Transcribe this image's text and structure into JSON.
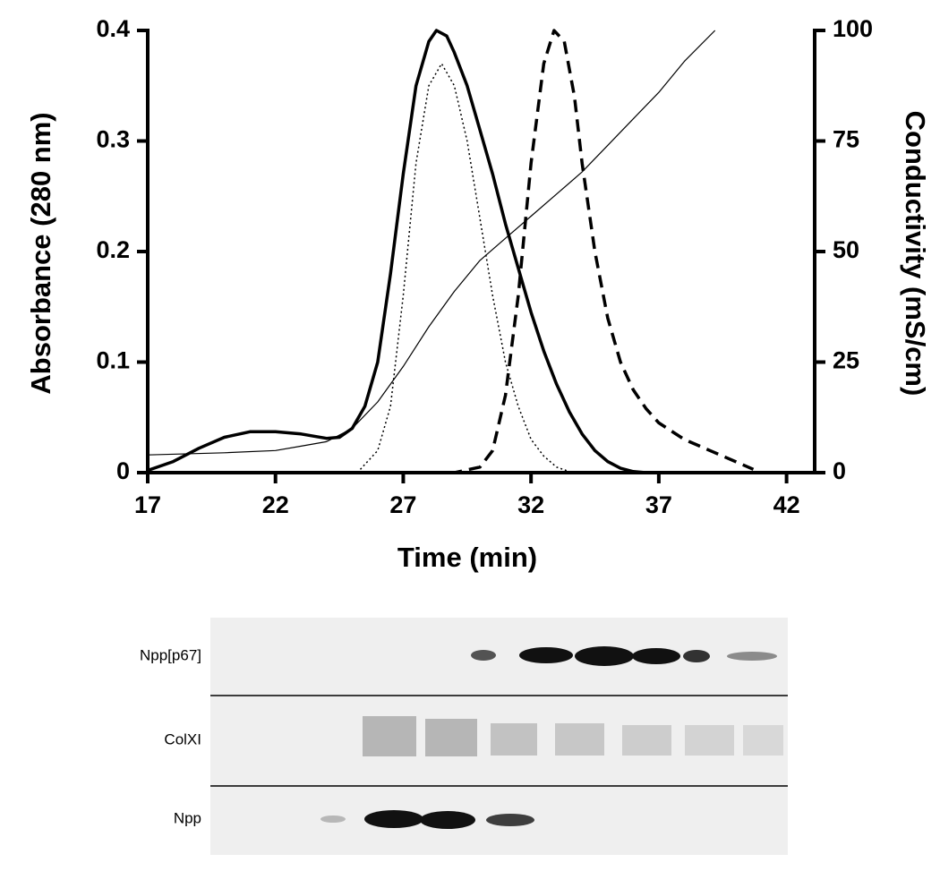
{
  "chart_data": {
    "type": "line",
    "x_label": "Time (min)",
    "y_label": "Absorbance (280 nm)",
    "y2_label": "Conductivity (mS/cm)",
    "xlim": [
      17,
      43.1
    ],
    "xticks": [
      17,
      22,
      27,
      32,
      37,
      42
    ],
    "ylim": [
      0,
      0.4
    ],
    "yticks": [
      0,
      0.1,
      0.2,
      0.3,
      0.4
    ],
    "y2lim": [
      0,
      100
    ],
    "y2ticks": [
      0,
      25,
      50,
      75,
      100
    ],
    "series": [
      {
        "color": "#000000",
        "line_style": "solid",
        "line_width": 3.5,
        "x": [
          17,
          18,
          19,
          20,
          21,
          22,
          23,
          24,
          24.5,
          25,
          25.5,
          26,
          26.5,
          27,
          27.5,
          28,
          28.3,
          28.7,
          29,
          29.5,
          30,
          30.5,
          31,
          31.5,
          32,
          32.5,
          33,
          33.5,
          34,
          34.5,
          35,
          35.5,
          36,
          36.5
        ],
        "values": [
          0.002,
          0.01,
          0.022,
          0.032,
          0.037,
          0.037,
          0.035,
          0.031,
          0.032,
          0.04,
          0.06,
          0.1,
          0.18,
          0.27,
          0.35,
          0.39,
          0.4,
          0.395,
          0.38,
          0.35,
          0.31,
          0.27,
          0.225,
          0.185,
          0.145,
          0.11,
          0.08,
          0.055,
          0.035,
          0.02,
          0.01,
          0.004,
          0.001,
          0
        ]
      },
      {
        "color": "#000000",
        "line_style": "dotted",
        "line_width": 1.5,
        "x": [
          25.2,
          26,
          26.5,
          27,
          27.5,
          28,
          28.5,
          29,
          29.5,
          30,
          30.5,
          31,
          31.5,
          32,
          32.5,
          33,
          33.5
        ],
        "values": [
          0,
          0.02,
          0.06,
          0.16,
          0.28,
          0.35,
          0.37,
          0.35,
          0.3,
          0.23,
          0.16,
          0.1,
          0.06,
          0.03,
          0.015,
          0.005,
          0.001
        ]
      },
      {
        "color": "#000000",
        "line_style": "dashed",
        "line_width": 3.5,
        "x": [
          26.5,
          29,
          30,
          30.5,
          31,
          31.5,
          32,
          32.5,
          32.9,
          33.3,
          33.7,
          34,
          34.5,
          35,
          35.5,
          36,
          36.5,
          37,
          38,
          39,
          40,
          40.7
        ],
        "values": [
          0,
          0,
          0.005,
          0.02,
          0.07,
          0.16,
          0.28,
          0.37,
          0.4,
          0.39,
          0.34,
          0.28,
          0.2,
          0.14,
          0.1,
          0.075,
          0.058,
          0.045,
          0.03,
          0.02,
          0.01,
          0.003
        ]
      },
      {
        "color": "#000000",
        "line_style": "solid",
        "line_width": 1.2,
        "axis": "y2",
        "x": [
          17,
          20,
          22,
          23,
          24,
          25,
          26,
          27,
          28,
          29,
          30,
          31,
          32,
          33,
          34,
          35,
          36,
          37,
          38,
          39.2
        ],
        "values": [
          4,
          4.5,
          5,
          6,
          7,
          10,
          16,
          24,
          33,
          41,
          48,
          53,
          58,
          63,
          68,
          74,
          80,
          86,
          93,
          100
        ]
      }
    ]
  },
  "gel": {
    "lanes": [
      "Npp[p67]",
      "ColXI",
      "Npp"
    ]
  }
}
